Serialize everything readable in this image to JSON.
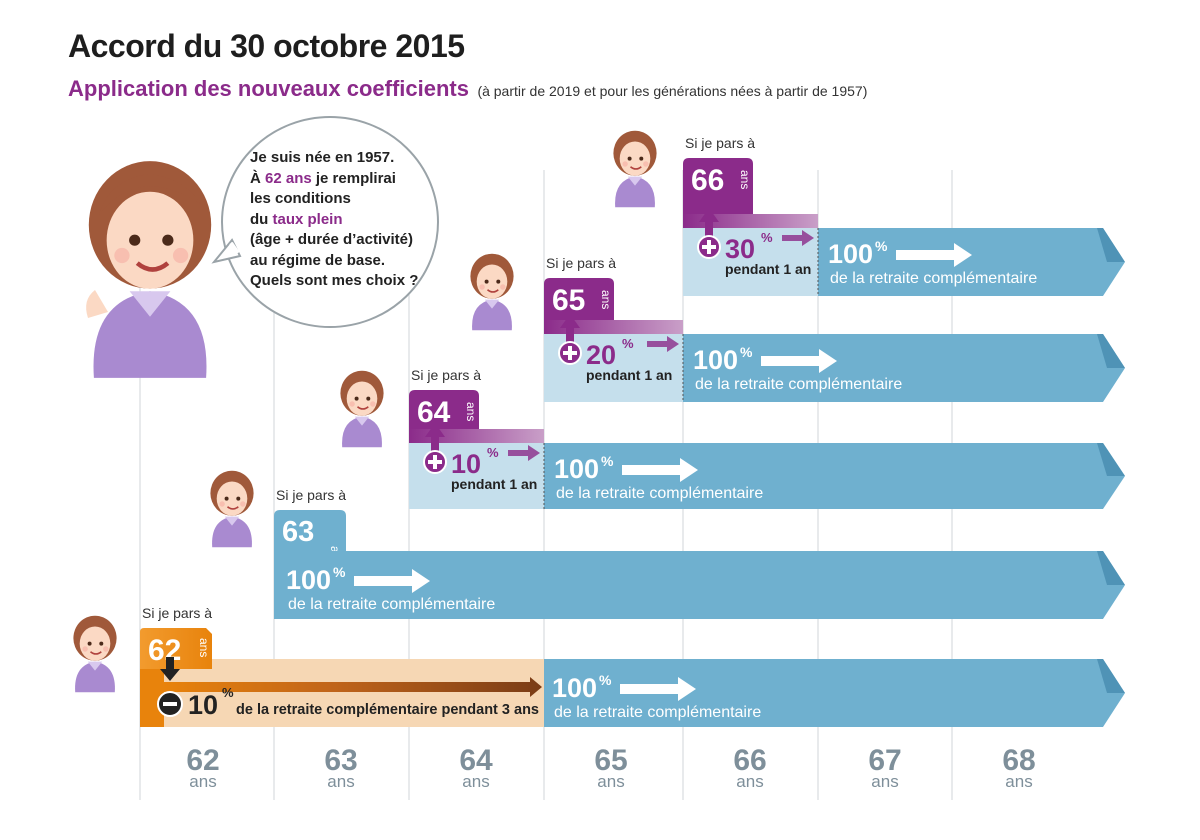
{
  "header": {
    "title": "Accord du 30 octobre 2015",
    "subtitle": "Application des nouveaux coefficients",
    "subnote": "(à partir de 2019 et pour les générations nées à partir de 1957)"
  },
  "bubble": {
    "line1": "Je suis née en 1957.",
    "l2_pre": "À ",
    "l2_age": "62 ans",
    "l2_post": " je remplirai",
    "line3": "les conditions",
    "l4_pre": "du ",
    "l4_hl": "taux plein",
    "line5": "(âge + durée d’activité)",
    "line6": "au régime de base.",
    "line7": "Quels sont mes choix ?"
  },
  "labels": {
    "si_je_pars": "Si je pars à",
    "ans": "ans",
    "percent": "%",
    "full_rate": "100",
    "complementary": "de la retraite complémentaire",
    "for_one_year": "pendant 1 an",
    "malus_text": "de la retraite complémentaire pendant 3 ans"
  },
  "axis_ticks": [
    "62",
    "63",
    "64",
    "65",
    "66",
    "67",
    "68"
  ],
  "scenarios": [
    {
      "age": "62",
      "type": "malus",
      "percent": "10",
      "years": 3
    },
    {
      "age": "63",
      "type": "neutral",
      "percent": "",
      "years": 0
    },
    {
      "age": "64",
      "type": "bonus",
      "percent": "10",
      "years": 1
    },
    {
      "age": "65",
      "type": "bonus",
      "percent": "20",
      "years": 1
    },
    {
      "age": "66",
      "type": "bonus",
      "percent": "30",
      "years": 1
    }
  ],
  "colors": {
    "blue": "#6fb0cf",
    "blue_light": "#c5dfec",
    "purple": "#8b2b8a",
    "orange": "#e8830c",
    "axis_text": "#7e8f9a",
    "grid": "#d9dde0"
  }
}
